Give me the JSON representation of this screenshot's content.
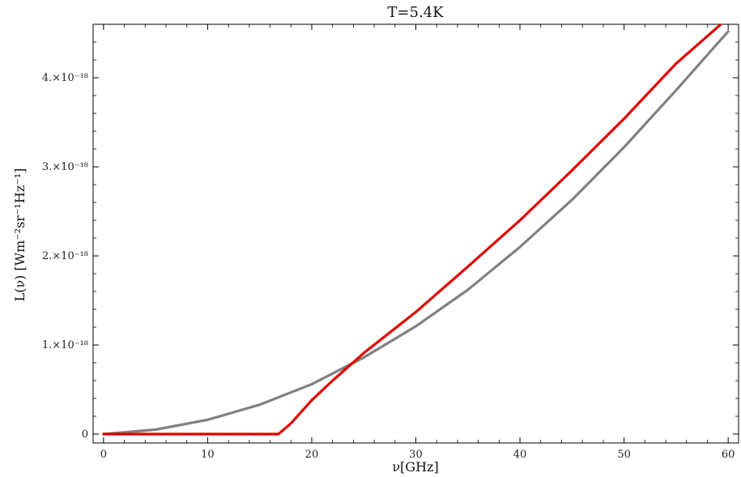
{
  "chart_data": {
    "type": "line",
    "title": "T=5.4K",
    "xlabel": "ν[GHz]",
    "ylabel": "L(ν) [Wm⁻²sr⁻¹Hz⁻¹]",
    "xlim": [
      -1,
      61
    ],
    "ylim": [
      -1e-19,
      4.6e-18
    ],
    "x_ticks": [
      0,
      10,
      20,
      30,
      40,
      50,
      60
    ],
    "x_tick_labels": [
      "0",
      "10",
      "20",
      "30",
      "40",
      "50",
      "60"
    ],
    "y_ticks": [
      0,
      1e-18,
      2e-18,
      3e-18,
      4e-18
    ],
    "y_tick_labels": [
      "0",
      "1.×10⁻¹⁸",
      "2.×10⁻¹⁸",
      "3.×10⁻¹⁸",
      "4.×10⁻¹⁸"
    ],
    "grid": false,
    "legend": "none",
    "series": [
      {
        "color": "#808080",
        "x": [
          0,
          5,
          10,
          15,
          20,
          25,
          30,
          35,
          40,
          45,
          50,
          55,
          60
        ],
        "y": [
          0,
          5e-20,
          1.6e-19,
          3.3e-19,
          5.6e-19,
          8.6e-19,
          1.21e-18,
          1.62e-18,
          2.1e-18,
          2.63e-18,
          3.22e-18,
          3.86e-18,
          4.52e-18
        ]
      },
      {
        "color": "#e00000",
        "x": [
          0,
          5,
          10,
          15,
          16.8,
          18,
          20,
          22,
          25,
          30,
          35,
          40,
          45,
          50,
          55,
          59.5
        ],
        "y": [
          0,
          0,
          0,
          0,
          0,
          1.2e-19,
          3.8e-19,
          6e-19,
          9.1e-19,
          1.37e-18,
          1.88e-18,
          2.4e-18,
          2.96e-18,
          3.54e-18,
          4.16e-18,
          4.62e-18
        ]
      }
    ]
  }
}
